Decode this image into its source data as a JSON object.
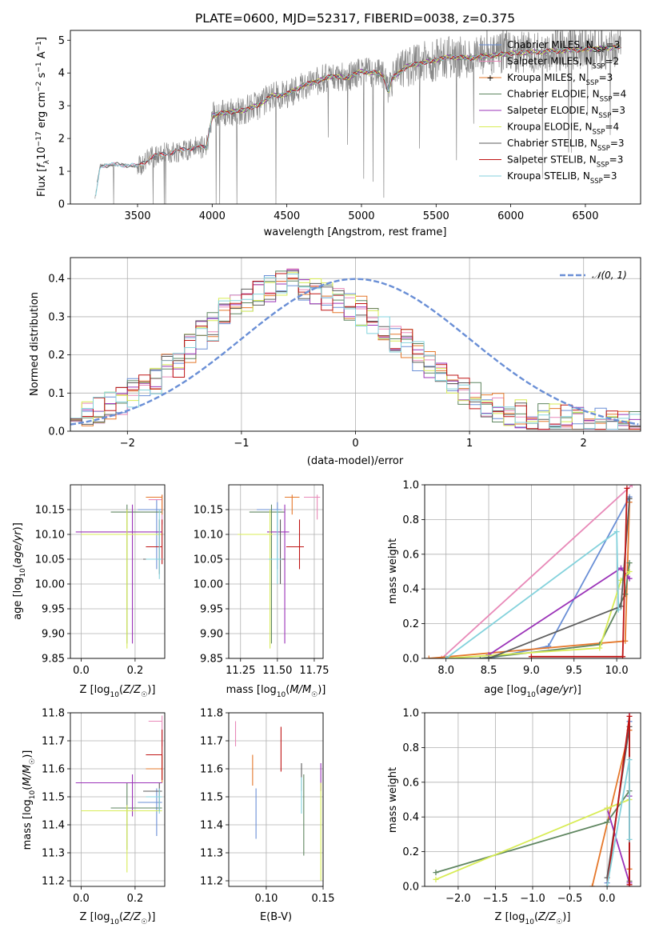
{
  "colors": {
    "chabrier_miles": "#6a8fd6",
    "salpeter_miles": "#e889b8",
    "kroupa_miles": "#e5782b",
    "chabrier_elodie": "#5f8660",
    "salpeter_elodie": "#9b33b8",
    "kroupa_elodie": "#d8ec55",
    "chabrier_stelib": "#5d5d5d",
    "salpeter_stelib": "#bf1414",
    "kroupa_stelib": "#84d2dc",
    "data": "#888888",
    "normal": "#6a8fd6"
  },
  "chart_data": [
    {
      "id": "spectrum",
      "type": "line",
      "title": "PLATE=0600, MJD=52317, FIBERID=0038, z=0.375",
      "xlabel": "wavelength [Angstrom, rest frame]",
      "ylabel": "Flux [f_λ 10^-17 erg cm^-2 s^-1 A^-1]",
      "xlim": [
        3050,
        6870
      ],
      "ylim": [
        0,
        5.3
      ],
      "xticks": [
        3500,
        4000,
        4500,
        5000,
        5500,
        6000,
        6500
      ],
      "yticks": [
        0,
        1,
        2,
        3,
        4,
        5
      ],
      "legend_position": "right",
      "continuum": {
        "x": [
          3210,
          3250,
          3400,
          3500,
          3600,
          3700,
          3800,
          3900,
          3960,
          4000,
          4050,
          4100,
          4200,
          4300,
          4400,
          4500,
          4600,
          4700,
          4800,
          4900,
          5000,
          5100,
          5150,
          5180,
          5200,
          5300,
          5400,
          5500,
          5600,
          5700,
          5800,
          5900,
          6000,
          6200,
          6400,
          6600,
          6740
        ],
        "y": [
          0.0,
          1.18,
          1.2,
          1.15,
          1.45,
          1.55,
          1.65,
          1.75,
          1.7,
          2.7,
          2.75,
          2.8,
          2.85,
          3.0,
          3.3,
          3.35,
          3.6,
          3.75,
          3.9,
          3.85,
          4.05,
          4.0,
          3.9,
          3.4,
          3.8,
          4.2,
          4.3,
          4.4,
          4.5,
          4.45,
          4.5,
          4.55,
          4.6,
          4.65,
          4.7,
          4.75,
          4.8
        ]
      },
      "series": [
        {
          "name": "Chabrier MILES, N_SSP=3",
          "color_key": "chabrier_miles"
        },
        {
          "name": "Salpeter MILES, N_SSP=2",
          "color_key": "salpeter_miles"
        },
        {
          "name": "Kroupa MILES, N_SSP=3",
          "color_key": "kroupa_miles"
        },
        {
          "name": "Chabrier ELODIE, N_SSP=4",
          "color_key": "chabrier_elodie"
        },
        {
          "name": "Salpeter ELODIE, N_SSP=3",
          "color_key": "salpeter_elodie"
        },
        {
          "name": "Kroupa ELODIE, N_SSP=4",
          "color_key": "kroupa_elodie"
        },
        {
          "name": "Chabrier STELIB, N_SSP=3",
          "color_key": "chabrier_stelib"
        },
        {
          "name": "Salpeter STELIB, N_SSP=3",
          "color_key": "salpeter_stelib"
        },
        {
          "name": "Kroupa STELIB, N_SSP=3",
          "color_key": "kroupa_stelib"
        }
      ]
    },
    {
      "id": "residuals",
      "type": "bar",
      "xlabel": "(data-model)/error",
      "ylabel": "Normed distribution",
      "xlim": [
        -2.5,
        2.5
      ],
      "ylim": [
        0,
        0.455
      ],
      "xticks": [
        -2,
        -1,
        0,
        1,
        2
      ],
      "yticks": [
        0.0,
        0.1,
        0.2,
        0.3,
        0.4
      ],
      "bins": {
        "start": -2.5,
        "width": 0.1
      },
      "profile": [
        0.04,
        0.04,
        0.045,
        0.05,
        0.06,
        0.065,
        0.075,
        0.085,
        0.1,
        0.11,
        0.12,
        0.13,
        0.15,
        0.165,
        0.18,
        0.2,
        0.22,
        0.24,
        0.255,
        0.275,
        0.29,
        0.31,
        0.32,
        0.33,
        0.345,
        0.355,
        0.36,
        0.37,
        0.38,
        0.39,
        0.395,
        0.39,
        0.38,
        0.37,
        0.36,
        0.35,
        0.345,
        0.34,
        0.33,
        0.325,
        0.315,
        0.3,
        0.29,
        0.275,
        0.26,
        0.245,
        0.23,
        0.21,
        0.195,
        0.18,
        0.17,
        0.155,
        0.14,
        0.125,
        0.11,
        0.1,
        0.09,
        0.08,
        0.07,
        0.06,
        0.055,
        0.05,
        0.045,
        0.04,
        0.038,
        0.036,
        0.034,
        0.032,
        0.03,
        0.03,
        0.028,
        0.026,
        0.025,
        0.024,
        0.022,
        0.02,
        0.02,
        0.018,
        0.017,
        0.016
      ],
      "reference": {
        "name": "𝒩(0, 1)",
        "mu": 0,
        "sigma": 1
      },
      "legend_position": "top-right"
    },
    {
      "id": "age_vs_Z",
      "type": "scatter",
      "xlabel": "Z [log10(Z/Z☉)]",
      "ylabel": "age [log10(age/yr)]",
      "xlim": [
        -0.04,
        0.31
      ],
      "ylim": [
        9.85,
        10.2
      ],
      "xticks": [
        0.0,
        0.2
      ],
      "yticks": [
        9.85,
        9.9,
        9.95,
        10.0,
        10.05,
        10.1,
        10.15
      ],
      "points": [
        {
          "key": "chabrier_miles",
          "x": 0.28,
          "y": 10.15,
          "xlo": 0.21,
          "xhi": 0.3,
          "ylo": 10.03,
          "yhi": 10.17
        },
        {
          "key": "salpeter_miles",
          "x": 0.3,
          "y": 10.17,
          "xlo": 0.25,
          "xhi": 0.3,
          "ylo": 10.12,
          "yhi": 10.18
        },
        {
          "key": "kroupa_miles",
          "x": 0.3,
          "y": 10.175,
          "xlo": 0.24,
          "xhi": 0.3,
          "ylo": 10.14,
          "yhi": 10.18
        },
        {
          "key": "chabrier_elodie",
          "x": 0.17,
          "y": 10.145,
          "xlo": 0.11,
          "xhi": 0.3,
          "ylo": 9.88,
          "yhi": 10.16
        },
        {
          "key": "salpeter_elodie",
          "x": 0.19,
          "y": 10.105,
          "xlo": -0.02,
          "xhi": 0.3,
          "ylo": 9.88,
          "yhi": 10.16
        },
        {
          "key": "kroupa_elodie",
          "x": 0.17,
          "y": 10.1,
          "xlo": 0.0,
          "xhi": 0.3,
          "ylo": 9.87,
          "yhi": 10.15
        },
        {
          "key": "chabrier_stelib",
          "x": 0.29,
          "y": 10.05,
          "xlo": 0.23,
          "xhi": 0.3,
          "ylo": 10.02,
          "yhi": 10.13
        },
        {
          "key": "salpeter_stelib",
          "x": 0.3,
          "y": 10.075,
          "xlo": 0.24,
          "xhi": 0.3,
          "ylo": 10.04,
          "yhi": 10.13
        },
        {
          "key": "kroupa_stelib",
          "x": 0.29,
          "y": 10.05,
          "xlo": 0.24,
          "xhi": 0.3,
          "ylo": 10.01,
          "yhi": 10.15
        }
      ]
    },
    {
      "id": "age_vs_mass",
      "type": "scatter",
      "xlabel": "mass [log10(M/M☉)]",
      "xlim": [
        11.17,
        11.81
      ],
      "ylim": [
        9.85,
        10.2
      ],
      "xticks": [
        11.25,
        11.5,
        11.75
      ],
      "yticks": [
        9.85,
        9.9,
        9.95,
        10.0,
        10.05,
        10.1,
        10.15
      ],
      "points": [
        {
          "key": "chabrier_miles",
          "x": 11.5,
          "y": 10.15,
          "xlo": 11.36,
          "xhi": 11.53,
          "ylo": 10.03,
          "yhi": 10.165
        },
        {
          "key": "salpeter_miles",
          "x": 11.77,
          "y": 10.175,
          "xlo": 11.68,
          "xhi": 11.79,
          "ylo": 10.13,
          "yhi": 10.18
        },
        {
          "key": "kroupa_miles",
          "x": 11.6,
          "y": 10.175,
          "xlo": 11.55,
          "xhi": 11.65,
          "ylo": 10.14,
          "yhi": 10.18
        },
        {
          "key": "chabrier_elodie",
          "x": 11.46,
          "y": 10.145,
          "xlo": 11.31,
          "xhi": 11.55,
          "ylo": 9.88,
          "yhi": 10.16
        },
        {
          "key": "salpeter_elodie",
          "x": 11.55,
          "y": 10.105,
          "xlo": 11.43,
          "xhi": 11.58,
          "ylo": 9.88,
          "yhi": 10.16
        },
        {
          "key": "kroupa_elodie",
          "x": 11.45,
          "y": 10.1,
          "xlo": 11.23,
          "xhi": 11.47,
          "ylo": 9.87,
          "yhi": 10.15
        },
        {
          "key": "chabrier_stelib",
          "x": 11.52,
          "y": 10.05,
          "xlo": 11.45,
          "xhi": 11.55,
          "ylo": 10.0,
          "yhi": 10.13
        },
        {
          "key": "salpeter_stelib",
          "x": 11.65,
          "y": 10.075,
          "xlo": 11.56,
          "xhi": 11.68,
          "ylo": 10.03,
          "yhi": 10.13
        },
        {
          "key": "kroupa_stelib",
          "x": 11.5,
          "y": 10.05,
          "xlo": 11.44,
          "xhi": 11.53,
          "ylo": 10.0,
          "yhi": 10.15
        }
      ]
    },
    {
      "id": "mass_weight_vs_age",
      "type": "line",
      "xlabel": "age [log10(age/yr)]",
      "ylabel": "mass weight",
      "xlim": [
        7.75,
        10.28
      ],
      "ylim": [
        0,
        1.0
      ],
      "xticks": [
        8.0,
        8.5,
        9.0,
        9.5,
        10.0
      ],
      "yticks": [
        0.0,
        0.2,
        0.4,
        0.6,
        0.8,
        1.0
      ],
      "series": [
        {
          "key": "chabrier_miles",
          "x": [
            8.5,
            9.2,
            10.15
          ],
          "y": [
            0.0,
            0.07,
            0.93
          ]
        },
        {
          "key": "salpeter_miles",
          "x": [
            7.95,
            10.18
          ],
          "y": [
            0.0,
            1.0
          ]
        },
        {
          "key": "kroupa_miles",
          "x": [
            7.8,
            10.1,
            10.15
          ],
          "y": [
            0.0,
            0.1,
            0.9
          ]
        },
        {
          "key": "chabrier_elodie",
          "x": [
            8.4,
            9.8,
            10.1,
            10.15
          ],
          "y": [
            0.0,
            0.08,
            0.37,
            0.55
          ]
        },
        {
          "key": "salpeter_elodie",
          "x": [
            8.5,
            10.05,
            10.15
          ],
          "y": [
            0.02,
            0.52,
            0.46
          ]
        },
        {
          "key": "kroupa_elodie",
          "x": [
            8.0,
            9.8,
            10.05,
            10.15
          ],
          "y": [
            0.0,
            0.06,
            0.45,
            0.5
          ]
        },
        {
          "key": "chabrier_stelib",
          "x": [
            8.5,
            10.05,
            10.15
          ],
          "y": [
            0.0,
            0.3,
            0.92
          ]
        },
        {
          "key": "salpeter_stelib",
          "x": [
            9.0,
            10.07,
            10.12
          ],
          "y": [
            0.01,
            0.01,
            0.98
          ]
        },
        {
          "key": "kroupa_stelib",
          "x": [
            8.0,
            10.0,
            10.02
          ],
          "y": [
            0.0,
            0.73,
            0.28
          ]
        }
      ]
    },
    {
      "id": "mass_vs_Z",
      "type": "scatter",
      "xlabel": "Z [log10(Z/Z☉)]",
      "ylabel": "mass [log10(M/M☉)]",
      "xlim": [
        -0.04,
        0.31
      ],
      "ylim": [
        11.18,
        11.8
      ],
      "xticks": [
        0.0,
        0.2
      ],
      "yticks": [
        11.2,
        11.3,
        11.4,
        11.5,
        11.6,
        11.7,
        11.8
      ],
      "points": [
        {
          "key": "chabrier_miles",
          "x": 0.28,
          "y": 11.48,
          "xlo": 0.21,
          "xhi": 0.3,
          "ylo": 11.36,
          "yhi": 11.53
        },
        {
          "key": "salpeter_miles",
          "x": 0.3,
          "y": 11.77,
          "xlo": 0.25,
          "xhi": 0.3,
          "ylo": 11.68,
          "yhi": 11.79
        },
        {
          "key": "kroupa_miles",
          "x": 0.3,
          "y": 11.6,
          "xlo": 0.24,
          "xhi": 0.3,
          "ylo": 11.55,
          "yhi": 11.65
        },
        {
          "key": "chabrier_elodie",
          "x": 0.17,
          "y": 11.46,
          "xlo": 0.11,
          "xhi": 0.3,
          "ylo": 11.31,
          "yhi": 11.55
        },
        {
          "key": "salpeter_elodie",
          "x": 0.19,
          "y": 11.55,
          "xlo": -0.02,
          "xhi": 0.3,
          "ylo": 11.43,
          "yhi": 11.58
        },
        {
          "key": "kroupa_elodie",
          "x": 0.17,
          "y": 11.45,
          "xlo": 0.0,
          "xhi": 0.3,
          "ylo": 11.23,
          "yhi": 11.47
        },
        {
          "key": "chabrier_stelib",
          "x": 0.29,
          "y": 11.52,
          "xlo": 0.23,
          "xhi": 0.3,
          "ylo": 11.45,
          "yhi": 11.55
        },
        {
          "key": "salpeter_stelib",
          "x": 0.3,
          "y": 11.65,
          "xlo": 0.24,
          "xhi": 0.3,
          "ylo": 11.56,
          "yhi": 11.74
        },
        {
          "key": "kroupa_stelib",
          "x": 0.29,
          "y": 11.5,
          "xlo": 0.24,
          "xhi": 0.3,
          "ylo": 11.44,
          "yhi": 11.53
        }
      ]
    },
    {
      "id": "mass_vs_ebv",
      "type": "scatter",
      "xlabel": "E(B-V)",
      "xlim": [
        0.067,
        0.15
      ],
      "ylim": [
        11.18,
        11.8
      ],
      "xticks": [
        0.1,
        0.15
      ],
      "yticks": [
        11.2,
        11.3,
        11.4,
        11.5,
        11.6,
        11.7,
        11.8
      ],
      "points": [
        {
          "key": "chabrier_miles",
          "x": 0.091,
          "y": 11.44,
          "ylo": 11.35,
          "yhi": 11.53
        },
        {
          "key": "salpeter_miles",
          "x": 0.073,
          "y": 11.72,
          "ylo": 11.68,
          "yhi": 11.77
        },
        {
          "key": "kroupa_miles",
          "x": 0.088,
          "y": 11.6,
          "ylo": 11.54,
          "yhi": 11.65
        },
        {
          "key": "chabrier_elodie",
          "x": 0.133,
          "y": 11.4,
          "ylo": 11.29,
          "yhi": 11.58
        },
        {
          "key": "salpeter_elodie",
          "x": 0.148,
          "y": 11.58,
          "ylo": 11.52,
          "yhi": 11.62
        },
        {
          "key": "kroupa_elodie",
          "x": 0.148,
          "y": 11.38,
          "ylo": 11.2,
          "yhi": 11.55
        },
        {
          "key": "chabrier_stelib",
          "x": 0.131,
          "y": 11.58,
          "ylo": 11.52,
          "yhi": 11.62
        },
        {
          "key": "salpeter_stelib",
          "x": 0.113,
          "y": 11.68,
          "ylo": 11.59,
          "yhi": 11.75
        },
        {
          "key": "kroupa_stelib",
          "x": 0.131,
          "y": 11.5,
          "ylo": 11.44,
          "yhi": 11.57
        }
      ]
    },
    {
      "id": "mass_weight_vs_Z",
      "type": "line",
      "xlabel": "Z [log10(Z/Z☉)]",
      "ylabel": "mass weight",
      "xlim": [
        -2.45,
        0.45
      ],
      "ylim": [
        0,
        1.0
      ],
      "xticks": [
        -2.0,
        -1.5,
        -1.0,
        -0.5,
        0.0
      ],
      "yticks": [
        0.0,
        0.2,
        0.4,
        0.6,
        0.8,
        1.0
      ],
      "series": [
        {
          "key": "chabrier_miles",
          "x": [
            0.0,
            0.3,
            0.3
          ],
          "y": [
            0.02,
            0.95,
            0.95
          ]
        },
        {
          "key": "salpeter_miles",
          "x": [
            0.3,
            0.3
          ],
          "y": [
            0.0,
            1.0
          ]
        },
        {
          "key": "kroupa_miles",
          "x": [
            -0.2,
            0.3,
            0.3
          ],
          "y": [
            0.0,
            0.9,
            0.1
          ]
        },
        {
          "key": "chabrier_elodie",
          "x": [
            -2.3,
            0.0,
            0.3
          ],
          "y": [
            0.08,
            0.37,
            0.55
          ]
        },
        {
          "key": "salpeter_elodie",
          "x": [
            0.0,
            0.3,
            0.3
          ],
          "y": [
            0.45,
            0.02,
            0.52
          ]
        },
        {
          "key": "kroupa_elodie",
          "x": [
            -2.3,
            0.0,
            0.3
          ],
          "y": [
            0.04,
            0.45,
            0.5
          ]
        },
        {
          "key": "chabrier_stelib",
          "x": [
            0.0,
            0.3,
            0.3
          ],
          "y": [
            0.05,
            0.92,
            0.03
          ]
        },
        {
          "key": "salpeter_stelib",
          "x": [
            0.0,
            0.3,
            0.3
          ],
          "y": [
            0.0,
            0.98,
            0.01
          ]
        },
        {
          "key": "kroupa_stelib",
          "x": [
            0.0,
            0.3,
            0.3
          ],
          "y": [
            0.0,
            0.73,
            0.27
          ]
        }
      ]
    }
  ]
}
